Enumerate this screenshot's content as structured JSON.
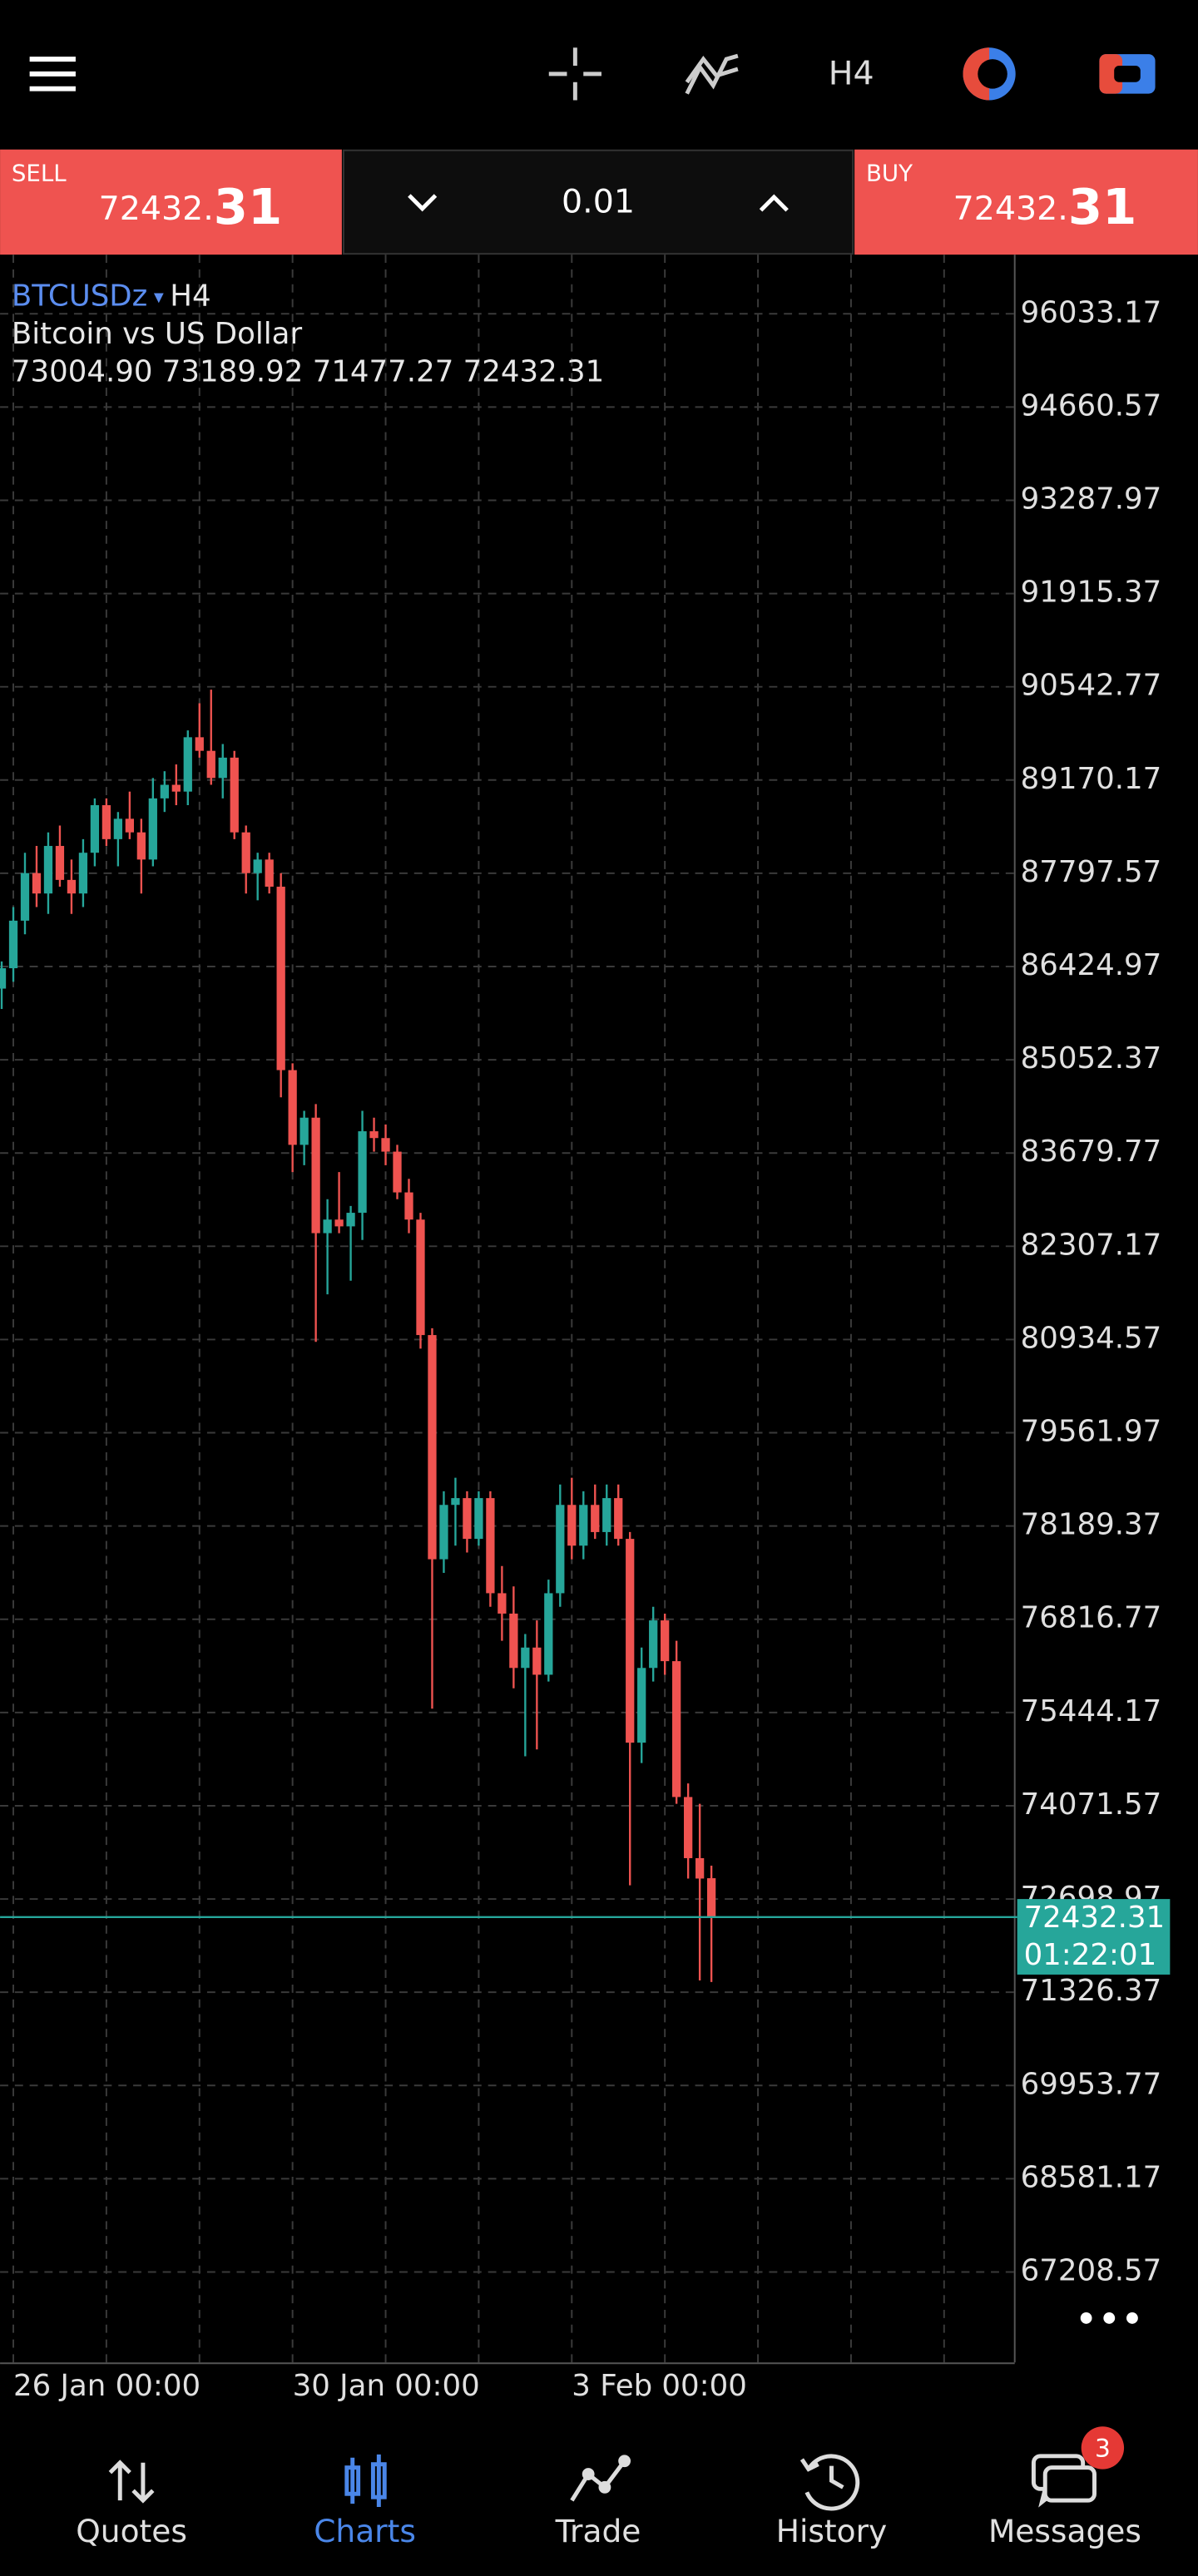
{
  "toolbar": {
    "timeframe": "H4"
  },
  "trade_panel": {
    "sell_label": "SELL",
    "sell_price_main": "72432.",
    "sell_price_pips": "31",
    "volume": "0.01",
    "buy_label": "BUY",
    "buy_price_main": "72432.",
    "buy_price_pips": "31"
  },
  "chart_data": {
    "type": "candlestick",
    "symbol": "BTCUSDz",
    "timeframe": "H4",
    "description": "Bitcoin vs US Dollar",
    "ohlc_line": "73004.90 73189.92 71477.27 72432.31",
    "countdown": "01:22:01",
    "bull_color": "#26a69a",
    "bear_color": "#ef5350",
    "open": [
      86100,
      86400,
      87100,
      87800,
      87500,
      88200,
      87700,
      87500,
      88100,
      88800,
      88300,
      88600,
      88400,
      88000,
      88900,
      89100,
      89000,
      89800,
      89600,
      89200,
      89500,
      88400,
      87800,
      88000,
      87600,
      84900,
      83800,
      84200,
      82500,
      82700,
      82600,
      82800,
      84000,
      83900,
      83700,
      83100,
      82700,
      81000,
      77700,
      78500,
      78600,
      78000,
      78600,
      77200,
      76900,
      76100,
      76400,
      76000,
      77200,
      78500,
      77900,
      78500,
      78100,
      78600,
      78000,
      75000,
      76100,
      76800,
      76200,
      74200,
      73300,
      73004.9
    ],
    "high": [
      86500,
      87300,
      88100,
      88200,
      88400,
      88500,
      88000,
      88300,
      88900,
      88900,
      88700,
      89000,
      88600,
      89200,
      89300,
      89400,
      89900,
      90300,
      90500,
      89700,
      89600,
      88500,
      88100,
      88100,
      87800,
      85000,
      84300,
      84400,
      83000,
      83400,
      82900,
      84300,
      84200,
      84100,
      83800,
      83300,
      82800,
      81100,
      78700,
      78900,
      78700,
      78700,
      78700,
      77600,
      77300,
      76600,
      76800,
      77400,
      78800,
      78900,
      78700,
      78800,
      78800,
      78800,
      78100,
      76400,
      77000,
      76900,
      76500,
      74400,
      74100,
      73189.92
    ],
    "low": [
      85800,
      86200,
      86900,
      87300,
      87200,
      87600,
      87200,
      87300,
      87900,
      88200,
      87900,
      88300,
      87500,
      87900,
      88700,
      88800,
      88800,
      89500,
      89100,
      88900,
      88300,
      87500,
      87400,
      87500,
      84500,
      83400,
      83500,
      80900,
      81600,
      82500,
      81800,
      82400,
      83700,
      83500,
      83000,
      82500,
      80800,
      75500,
      77500,
      77900,
      77800,
      77900,
      77000,
      76500,
      75800,
      74800,
      74900,
      75900,
      77000,
      77700,
      77700,
      78000,
      77900,
      77900,
      72900,
      74700,
      75900,
      76000,
      74100,
      73000,
      71500,
      71477.27
    ],
    "close": [
      86400,
      87100,
      87800,
      87500,
      88200,
      87700,
      87500,
      88100,
      88800,
      88300,
      88600,
      88400,
      88000,
      88900,
      89100,
      89000,
      89800,
      89600,
      89200,
      89500,
      88400,
      87800,
      88000,
      87600,
      84900,
      83800,
      84200,
      82500,
      82700,
      82600,
      82800,
      84000,
      83900,
      83700,
      83100,
      82700,
      81000,
      77700,
      78500,
      78600,
      78000,
      78600,
      77200,
      76900,
      76100,
      76400,
      76000,
      77200,
      78500,
      77900,
      78500,
      78100,
      78600,
      78000,
      75000,
      76100,
      76800,
      76200,
      74200,
      73300,
      73000,
      72432.31
    ],
    "xlim": [
      -0.14,
      87
    ],
    "xticks": [
      {
        "value": 1,
        "label": "26 Jan 00:00"
      },
      {
        "value": 25,
        "label": "30 Jan 00:00"
      },
      {
        "value": 49,
        "label": "3 Feb 00:00"
      }
    ],
    "ylim": [
      65877,
      96904
    ],
    "yticks": [
      96033.17,
      94660.57,
      93287.97,
      91915.37,
      90542.77,
      89170.17,
      87797.57,
      86424.97,
      85052.37,
      83679.77,
      82307.17,
      80934.57,
      79561.97,
      78189.37,
      76816.77,
      75444.17,
      74071.57,
      72698.97,
      71326.37,
      69953.77,
      68581.17,
      67208.57
    ],
    "grid": true
  },
  "nav": {
    "items": [
      {
        "label": "Quotes"
      },
      {
        "label": "Charts"
      },
      {
        "label": "Trade"
      },
      {
        "label": "History"
      },
      {
        "label": "Messages"
      }
    ],
    "messages_badge": 3
  }
}
